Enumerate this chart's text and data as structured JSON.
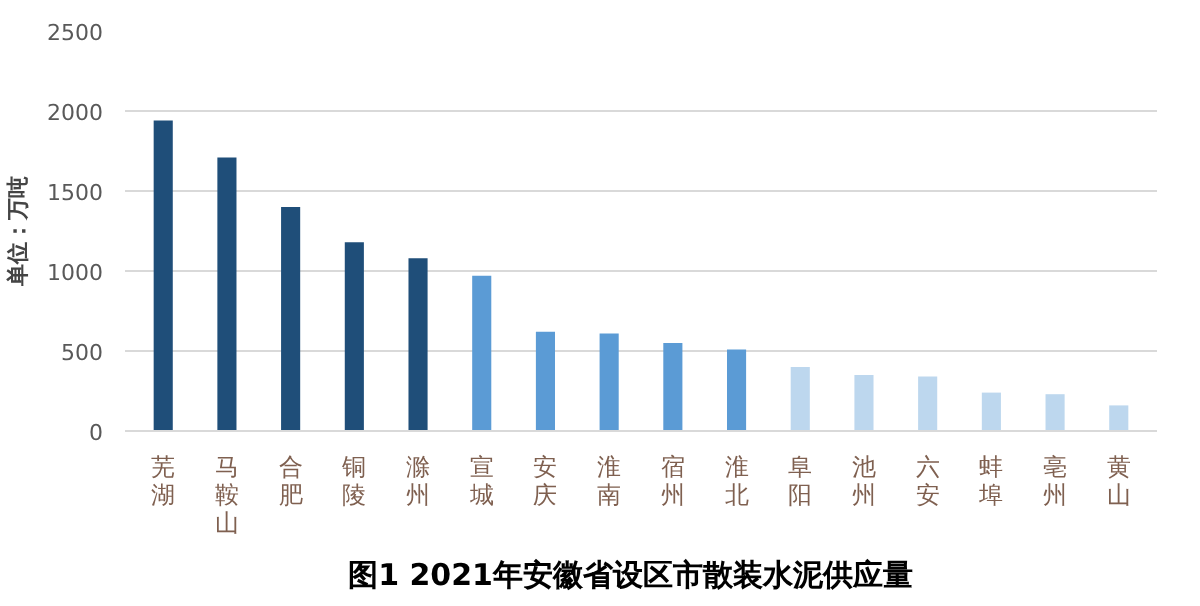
{
  "chart_data": {
    "type": "bar",
    "title": "图1   2021年安徽省设区市散装水泥供应量",
    "ylabel": "单位：万吨",
    "categories": [
      "芜湖",
      "马鞍山",
      "合肥",
      "铜陵",
      "滁州",
      "宣城",
      "安庆",
      "淮南",
      "宿州",
      "淮北",
      "阜阳",
      "池州",
      "六安",
      "蚌埠",
      "亳州",
      "黄山"
    ],
    "values": [
      1940,
      1710,
      1400,
      1180,
      1080,
      970,
      620,
      610,
      550,
      510,
      400,
      350,
      340,
      240,
      230,
      160
    ],
    "colors": [
      "#1f4e79",
      "#1f4e79",
      "#1f4e79",
      "#1f4e79",
      "#1f4e79",
      "#5b9bd5",
      "#5b9bd5",
      "#5b9bd5",
      "#5b9bd5",
      "#5b9bd5",
      "#bdd7ee",
      "#bdd7ee",
      "#bdd7ee",
      "#bdd7ee",
      "#bdd7ee",
      "#bdd7ee"
    ],
    "ylim": [
      0,
      2500
    ],
    "yticks": [
      0,
      500,
      1000,
      1500,
      2000,
      2500
    ],
    "grid": "y"
  }
}
